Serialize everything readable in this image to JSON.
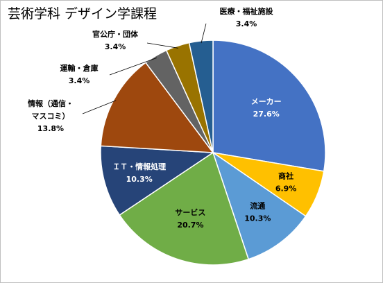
{
  "chart_data": {
    "type": "pie",
    "title": "芸術学科 デザイン学課程",
    "start_angle_deg": 0,
    "direction": "clockwise",
    "slices": [
      {
        "lines": [
          "メーカー"
        ],
        "value": "27.6%",
        "pct": 27.6,
        "color": "#4472C4",
        "inside": true,
        "text_color": "#ffffff"
      },
      {
        "lines": [
          "商社"
        ],
        "value": "6.9%",
        "pct": 6.9,
        "color": "#FFC000",
        "inside": true,
        "text_color": "#000000"
      },
      {
        "lines": [
          "流通"
        ],
        "value": "10.3%",
        "pct": 10.3,
        "color": "#5B9BD5",
        "inside": true,
        "text_color": "#000000"
      },
      {
        "lines": [
          "サービス"
        ],
        "value": "20.7%",
        "pct": 20.7,
        "color": "#70AD47",
        "inside": true,
        "text_color": "#000000"
      },
      {
        "lines": [
          "ＩＴ・情報処理"
        ],
        "value": "10.3%",
        "pct": 10.3,
        "color": "#264478",
        "inside": true,
        "text_color": "#ffffff"
      },
      {
        "lines": [
          "情報（通信・",
          "マスコミ）"
        ],
        "value": "13.8%",
        "pct": 13.8,
        "color": "#9E480E",
        "inside": false,
        "text_color": "#000000"
      },
      {
        "lines": [
          "運輸・倉庫"
        ],
        "value": "3.4%",
        "pct": 3.4,
        "color": "#636363",
        "inside": false,
        "text_color": "#000000"
      },
      {
        "lines": [
          "官公庁・団体"
        ],
        "value": "3.4%",
        "pct": 3.4,
        "color": "#997300",
        "inside": false,
        "text_color": "#000000"
      },
      {
        "lines": [
          "医療・福祉施設"
        ],
        "value": "3.4%",
        "pct": 3.4,
        "color": "#255E91",
        "inside": false,
        "text_color": "#000000"
      }
    ]
  }
}
